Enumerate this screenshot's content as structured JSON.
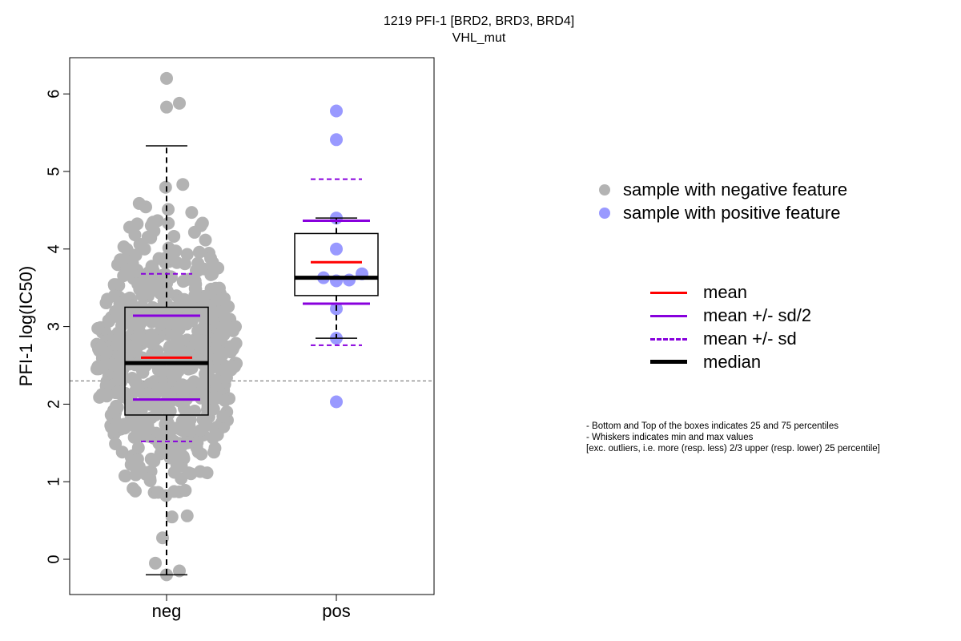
{
  "title_line1": "1219 PFI-1 [BRD2, BRD3, BRD4]",
  "title_line2": "VHL_mut",
  "legend": {
    "neg_label": "sample with negative feature",
    "pos_label": "sample with positive feature",
    "mean_label": "mean",
    "sd2_label": "mean +/- sd/2",
    "sd_label": "mean +/- sd",
    "median_label": "median"
  },
  "notes": [
    "- Bottom and Top of the boxes indicates 25 and 75 percentiles",
    "- Whiskers indicates min and max values",
    "[exc. outliers, i.e. more (resp. less) 2/3 upper (resp. lower) 25 percentile]"
  ],
  "colors": {
    "neg_points": "#b3b3b3",
    "pos_points": "#9999ff",
    "mean": "#ff0000",
    "sd": "#8800dd",
    "median": "#000000",
    "threshold": "#666666"
  },
  "chart_data": {
    "type": "scatter",
    "title": "1219 PFI-1 [BRD2, BRD3, BRD4]",
    "subtitle": "VHL_mut",
    "xlabel": "",
    "ylabel": "PFI-1 log(IC50)",
    "categories": [
      "neg",
      "pos"
    ],
    "ylim": [
      -0.45,
      6.5
    ],
    "yticks": [
      0,
      1,
      2,
      3,
      4,
      5,
      6
    ],
    "threshold": 2.3,
    "groups": [
      {
        "name": "neg",
        "n_points": 700,
        "min": -0.2,
        "max": 6.2,
        "mean": 2.6,
        "sd": 1.08,
        "q1": 1.86,
        "median": 2.53,
        "q3": 3.25,
        "whisker_low": -0.2,
        "whisker_high": 5.33
      },
      {
        "name": "pos",
        "values": [
          5.78,
          5.41,
          4.4,
          4.0,
          3.68,
          3.63,
          3.6,
          3.59,
          3.23,
          2.85,
          2.03
        ],
        "mean": 3.83,
        "sd": 1.07,
        "q1": 3.4,
        "median": 3.63,
        "q3": 4.2,
        "whisker_low": 2.85,
        "whisker_high": 4.4
      }
    ]
  }
}
